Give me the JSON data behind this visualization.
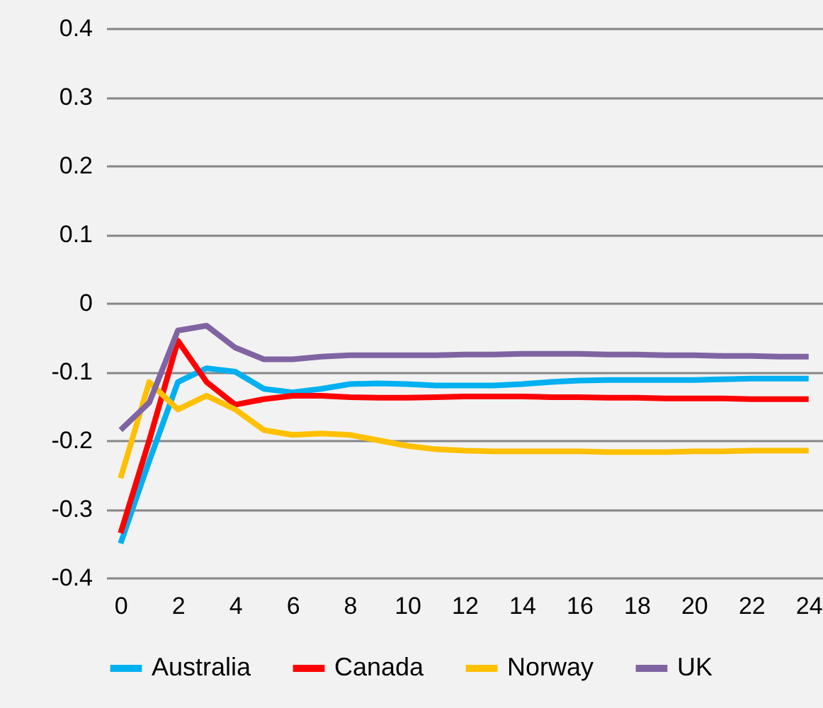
{
  "chart_data": {
    "type": "line",
    "x": [
      0,
      1,
      2,
      3,
      4,
      5,
      6,
      7,
      8,
      9,
      10,
      11,
      12,
      13,
      14,
      15,
      16,
      17,
      18,
      19,
      20,
      21,
      22,
      23,
      24
    ],
    "xlim": [
      -0.5,
      24.5
    ],
    "xticks": [
      0,
      2,
      4,
      6,
      8,
      10,
      12,
      14,
      16,
      18,
      20,
      22,
      24
    ],
    "ylim": [
      -0.4,
      0.4
    ],
    "yticks": [
      -0.4,
      -0.3,
      -0.2,
      -0.1,
      0,
      0.1,
      0.2,
      0.3,
      0.4
    ],
    "grid": "y",
    "legend": "bottom",
    "line_style": "solid",
    "series": [
      {
        "name": "Australia",
        "color": "#00b0f0",
        "values": [
          -0.35,
          -0.23,
          -0.115,
          -0.095,
          -0.1,
          -0.125,
          -0.13,
          -0.125,
          -0.118,
          -0.117,
          -0.118,
          -0.12,
          -0.12,
          -0.12,
          -0.118,
          -0.115,
          -0.113,
          -0.112,
          -0.112,
          -0.112,
          -0.112,
          -0.111,
          -0.11,
          -0.11,
          -0.11
        ]
      },
      {
        "name": "Canada",
        "color": "#ff0000",
        "values": [
          -0.335,
          -0.2,
          -0.055,
          -0.115,
          -0.148,
          -0.14,
          -0.135,
          -0.135,
          -0.137,
          -0.138,
          -0.138,
          -0.137,
          -0.136,
          -0.136,
          -0.136,
          -0.137,
          -0.137,
          -0.138,
          -0.138,
          -0.139,
          -0.139,
          -0.139,
          -0.14,
          -0.14,
          -0.14
        ]
      },
      {
        "name": "Norway",
        "color": "#ffc000",
        "values": [
          -0.255,
          -0.115,
          -0.155,
          -0.135,
          -0.155,
          -0.185,
          -0.192,
          -0.19,
          -0.192,
          -0.2,
          -0.208,
          -0.213,
          -0.215,
          -0.216,
          -0.216,
          -0.216,
          -0.216,
          -0.217,
          -0.217,
          -0.217,
          -0.216,
          -0.216,
          -0.215,
          -0.215,
          -0.215
        ]
      },
      {
        "name": "UK",
        "color": "#8064a2",
        "values": [
          -0.185,
          -0.145,
          -0.04,
          -0.033,
          -0.065,
          -0.082,
          -0.082,
          -0.078,
          -0.076,
          -0.076,
          -0.076,
          -0.076,
          -0.075,
          -0.075,
          -0.074,
          -0.074,
          -0.074,
          -0.075,
          -0.075,
          -0.076,
          -0.076,
          -0.077,
          -0.077,
          -0.078,
          -0.078
        ]
      }
    ]
  }
}
